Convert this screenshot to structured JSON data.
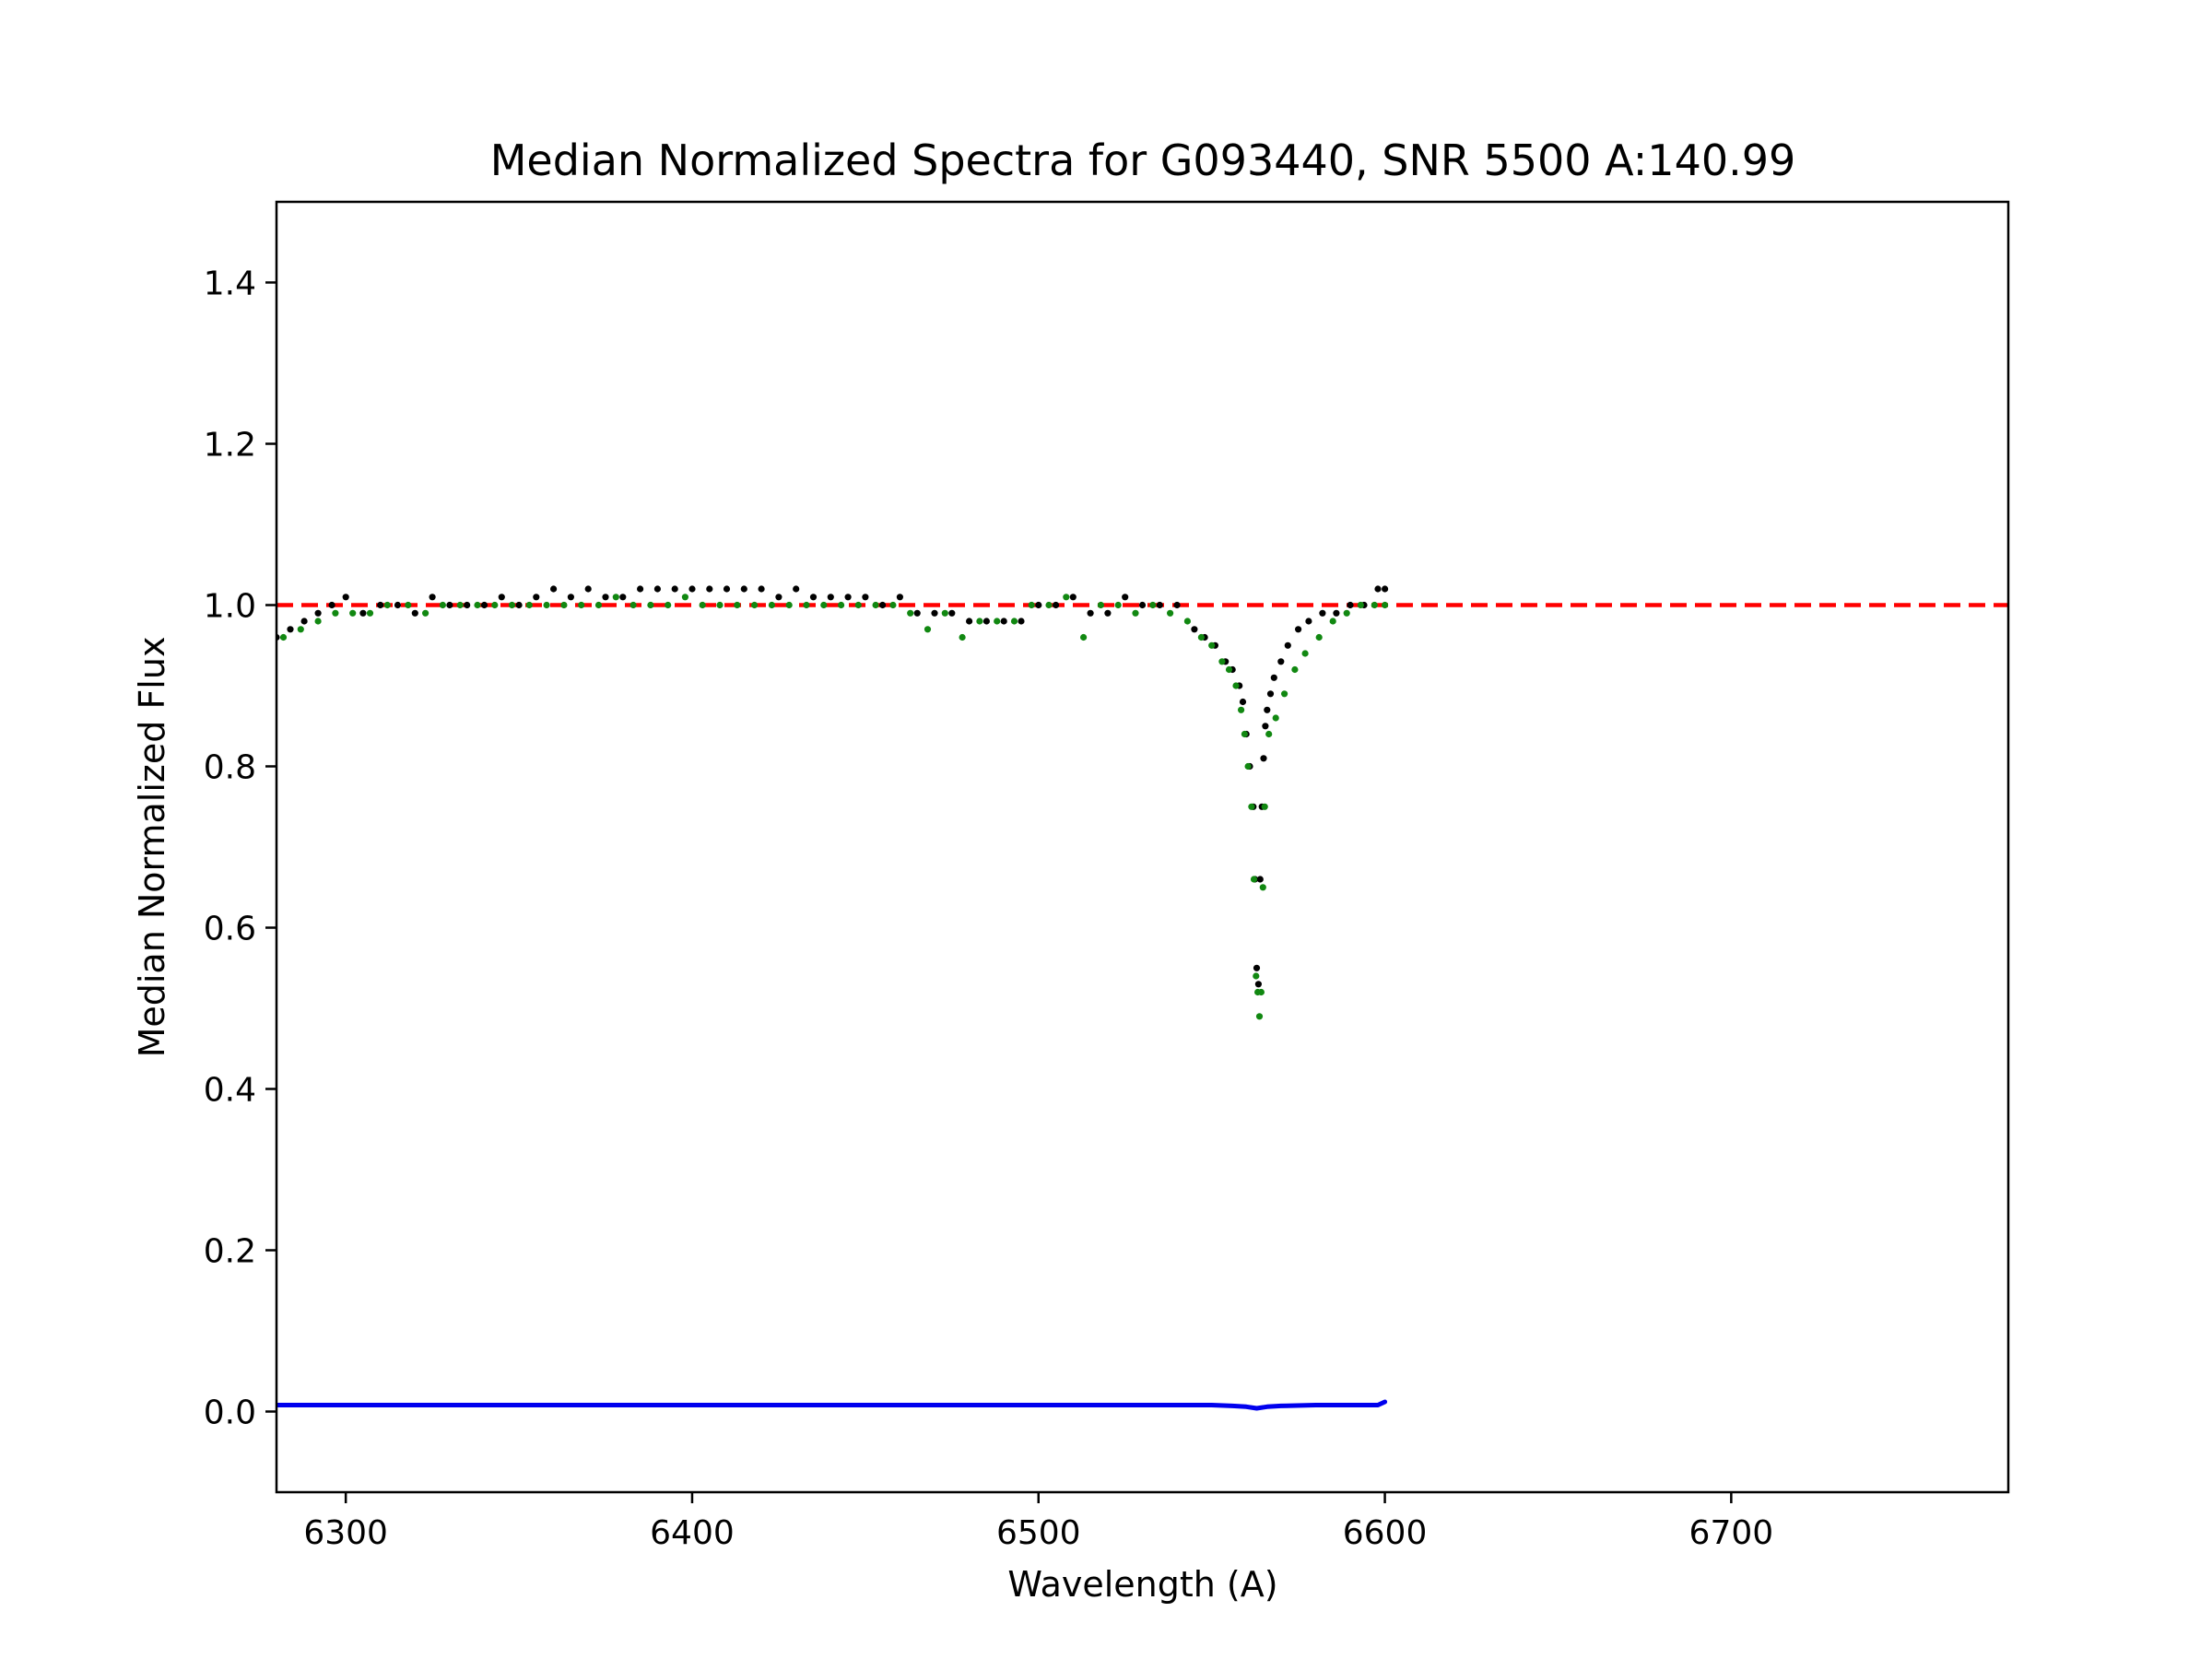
{
  "chart_data": {
    "type": "scatter",
    "title": "Median Normalized Spectra for G093440, SNR 5500 A:140.99",
    "xlabel": "Wavelength (A)",
    "ylabel": "Median Normalized Flux",
    "xlim": [
      6280,
      6780
    ],
    "ylim": [
      -0.1,
      1.5
    ],
    "xticks": [
      6300,
      6400,
      6500,
      6600,
      6700
    ],
    "xtick_labels": [
      "6300",
      "6400",
      "6500",
      "6600",
      "6700"
    ],
    "yticks": [
      0.0,
      0.2,
      0.4,
      0.6,
      0.8,
      1.0,
      1.2,
      1.4
    ],
    "ytick_labels": [
      "0.0",
      "0.2",
      "0.4",
      "0.6",
      "0.8",
      "1.0",
      "1.2",
      "1.4"
    ],
    "grid": false,
    "legend": "none",
    "reference_line": {
      "y": 1.0,
      "style": "dashed",
      "color": "#ff0000"
    },
    "series": [
      {
        "color": "#000000",
        "marker": "dot",
        "x": [
          6280,
          6284,
          6288,
          6292,
          6296,
          6300,
          6305,
          6310,
          6315,
          6320,
          6325,
          6330,
          6335,
          6340,
          6345,
          6350,
          6355,
          6360,
          6365,
          6370,
          6375,
          6380,
          6385,
          6390,
          6395,
          6400,
          6405,
          6410,
          6415,
          6420,
          6425,
          6430,
          6435,
          6440,
          6445,
          6450,
          6455,
          6460,
          6465,
          6470,
          6475,
          6480,
          6485,
          6490,
          6495,
          6500,
          6505,
          6510,
          6515,
          6520,
          6525,
          6530,
          6535,
          6540,
          6545,
          6548,
          6551,
          6554,
          6556,
          6558,
          6559,
          6560,
          6561,
          6562,
          6562.5,
          6563,
          6563.5,
          6564,
          6564.5,
          6565,
          6565.5,
          6566,
          6567,
          6568,
          6570,
          6572,
          6575,
          6578,
          6582,
          6586,
          6590,
          6594,
          6598,
          6600
        ],
        "y": [
          0.96,
          0.97,
          0.98,
          0.99,
          1.0,
          1.01,
          0.99,
          1.0,
          1.0,
          0.99,
          1.01,
          1.0,
          1.0,
          1.0,
          1.01,
          1.0,
          1.01,
          1.02,
          1.01,
          1.02,
          1.01,
          1.01,
          1.02,
          1.02,
          1.02,
          1.02,
          1.02,
          1.02,
          1.02,
          1.02,
          1.01,
          1.02,
          1.01,
          1.01,
          1.01,
          1.01,
          1.0,
          1.01,
          0.99,
          0.99,
          0.99,
          0.98,
          0.98,
          0.98,
          0.98,
          1.0,
          1.0,
          1.01,
          0.99,
          0.99,
          1.01,
          1.0,
          1.0,
          1.0,
          0.97,
          0.96,
          0.95,
          0.93,
          0.92,
          0.9,
          0.88,
          0.84,
          0.8,
          0.75,
          0.66,
          0.55,
          0.53,
          0.66,
          0.75,
          0.81,
          0.85,
          0.87,
          0.89,
          0.91,
          0.93,
          0.95,
          0.97,
          0.98,
          0.99,
          0.99,
          1.0,
          1.0,
          1.02,
          1.02
        ]
      },
      {
        "color": "#118811",
        "marker": "dot",
        "x": [
          6282,
          6287,
          6292,
          6297,
          6302,
          6307,
          6312,
          6318,
          6323,
          6328,
          6333,
          6338,
          6343,
          6348,
          6353,
          6358,
          6363,
          6368,
          6373,
          6378,
          6383,
          6388,
          6393,
          6398,
          6403,
          6408,
          6413,
          6418,
          6423,
          6428,
          6433,
          6438,
          6443,
          6448,
          6453,
          6458,
          6463,
          6468,
          6473,
          6478,
          6483,
          6488,
          6493,
          6498,
          6503,
          6508,
          6513,
          6518,
          6523,
          6528,
          6533,
          6538,
          6543,
          6547,
          6550,
          6553,
          6555,
          6557,
          6558.5,
          6559.5,
          6560.5,
          6561.5,
          6562.2,
          6562.8,
          6563.3,
          6563.8,
          6564.3,
          6564.8,
          6565.3,
          6566.5,
          6568.5,
          6571,
          6574,
          6577,
          6581,
          6585,
          6589,
          6593,
          6597,
          6600
        ],
        "y": [
          0.96,
          0.97,
          0.98,
          0.99,
          0.99,
          0.99,
          1.0,
          1.0,
          0.99,
          1.0,
          1.0,
          1.0,
          1.0,
          1.0,
          1.0,
          1.0,
          1.0,
          1.0,
          1.0,
          1.01,
          1.0,
          1.0,
          1.0,
          1.01,
          1.0,
          1.0,
          1.0,
          1.0,
          1.0,
          1.0,
          1.0,
          1.0,
          1.0,
          1.0,
          1.0,
          1.0,
          0.99,
          0.97,
          0.99,
          0.96,
          0.98,
          0.98,
          0.98,
          1.0,
          1.0,
          1.01,
          0.96,
          1.0,
          1.0,
          0.99,
          1.0,
          0.99,
          0.98,
          0.96,
          0.95,
          0.93,
          0.92,
          0.9,
          0.87,
          0.84,
          0.8,
          0.75,
          0.66,
          0.54,
          0.52,
          0.49,
          0.52,
          0.65,
          0.75,
          0.84,
          0.86,
          0.89,
          0.92,
          0.94,
          0.96,
          0.98,
          0.99,
          1.0,
          1.0,
          1.0
        ]
      },
      {
        "color": "#0000ee",
        "marker": "line",
        "x": [
          6280,
          6300,
          6350,
          6400,
          6450,
          6500,
          6550,
          6556,
          6560,
          6563,
          6566,
          6570,
          6580,
          6590,
          6598,
          6600
        ],
        "y": [
          0.008,
          0.008,
          0.008,
          0.008,
          0.008,
          0.008,
          0.008,
          0.007,
          0.006,
          0.004,
          0.006,
          0.007,
          0.008,
          0.008,
          0.008,
          0.012
        ]
      }
    ]
  }
}
